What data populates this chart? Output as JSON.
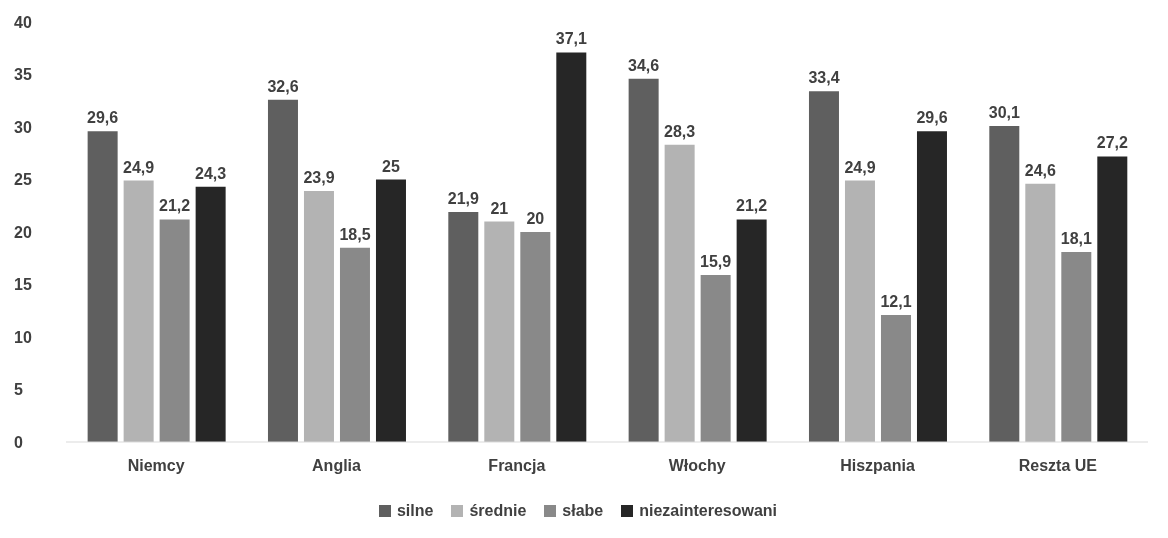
{
  "chart_data": {
    "type": "bar",
    "categories": [
      "Niemcy",
      "Anglia",
      "Francja",
      "Włochy",
      "Hiszpania",
      "Reszta UE"
    ],
    "series": [
      {
        "name": "silne",
        "color": "#5f5f5f",
        "values": [
          29.6,
          32.6,
          21.9,
          34.6,
          33.4,
          30.1
        ],
        "value_labels": [
          "29,6",
          "32,6",
          "21,9",
          "34,6",
          "33,4",
          "30,1"
        ]
      },
      {
        "name": "średnie",
        "color": "#b3b3b3",
        "values": [
          24.9,
          23.9,
          21,
          28.3,
          24.9,
          24.6
        ],
        "value_labels": [
          "24,9",
          "23,9",
          "21",
          "28,3",
          "24,9",
          "24,6"
        ]
      },
      {
        "name": "słabe",
        "color": "#898989",
        "values": [
          21.2,
          18.5,
          20,
          15.9,
          12.1,
          18.1
        ],
        "value_labels": [
          "21,2",
          "18,5",
          "20",
          "15,9",
          "12,1",
          "18,1"
        ]
      },
      {
        "name": "niezainteresowani",
        "color": "#262626",
        "values": [
          24.3,
          25,
          37.1,
          21.2,
          29.6,
          27.2
        ],
        "value_labels": [
          "24,3",
          "25",
          "37,1",
          "21,2",
          "29,6",
          "27,2"
        ]
      }
    ],
    "ylim": [
      0,
      40
    ],
    "yticks": [
      0,
      5,
      10,
      15,
      20,
      25,
      30,
      35,
      40
    ],
    "grid": false,
    "legend": "bottom"
  }
}
